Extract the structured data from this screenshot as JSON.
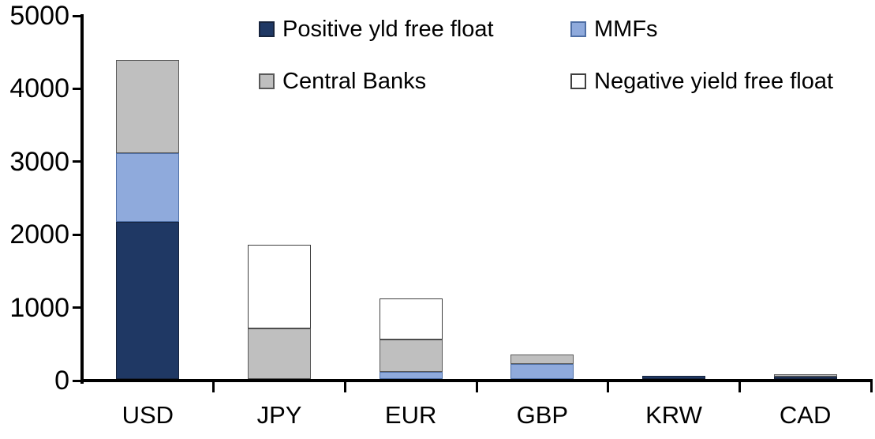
{
  "chart_data": {
    "type": "bar",
    "stacked": true,
    "title": "",
    "xlabel": "",
    "ylabel": "",
    "categories": [
      "USD",
      "JPY",
      "EUR",
      "GBP",
      "KRW",
      "CAD"
    ],
    "series": [
      {
        "name": "Positive yld free float",
        "color": "#1F3864",
        "border_color": "#17243d",
        "values": [
          2150,
          0,
          0,
          0,
          45,
          30
        ]
      },
      {
        "name": "MMFs",
        "color": "#8FAADC",
        "border_color": "#4f6fa5",
        "values": [
          950,
          0,
          100,
          210,
          0,
          0
        ]
      },
      {
        "name": "Central Banks",
        "color": "#BFBFBF",
        "border_color": "#595959",
        "values": [
          1275,
          690,
          445,
          125,
          0,
          35
        ]
      },
      {
        "name": "Negative yield free float",
        "color": "#FFFFFF",
        "border_color": "#404040",
        "values": [
          0,
          1150,
          555,
          0,
          0,
          0
        ]
      }
    ],
    "totals": [
      4375,
      1840,
      1100,
      335,
      45,
      65
    ],
    "ylim": [
      0,
      5000
    ],
    "yticks": [
      0,
      1000,
      2000,
      3000,
      4000,
      5000
    ],
    "ytick_labels": [
      "0",
      "1000",
      "2000",
      "3000",
      "4000",
      "5000"
    ],
    "grid": false,
    "legend_position": "top-inside",
    "legend_rows": [
      [
        "Positive yld free float",
        "MMFs"
      ],
      [
        "Central Banks",
        "Negative yield free float"
      ]
    ]
  },
  "colors": {
    "axis": "#000000",
    "text": "#000000",
    "background": "#FFFFFF"
  }
}
